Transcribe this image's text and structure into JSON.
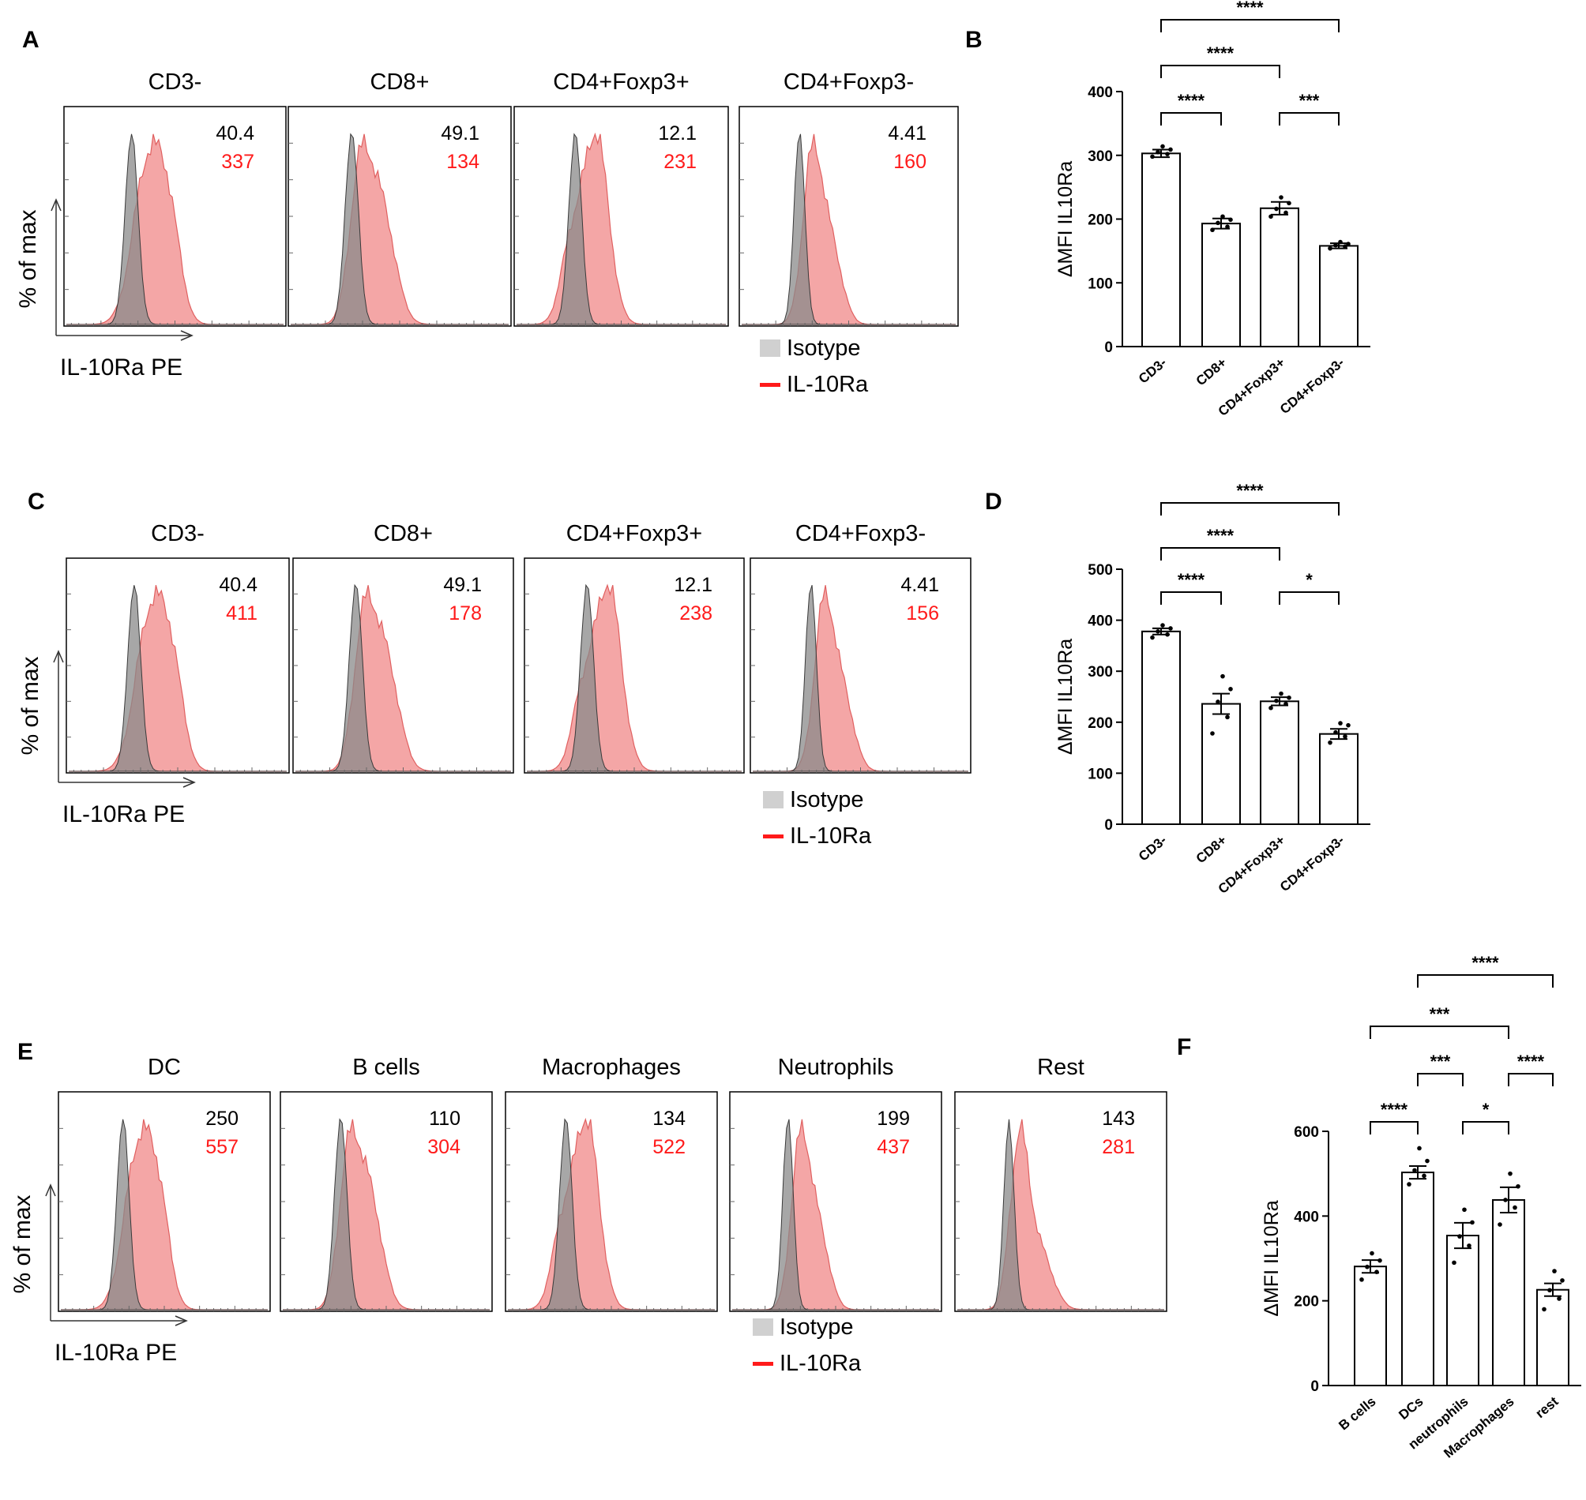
{
  "colors": {
    "isotype_fill": "#8a8a8a",
    "isotype_stroke": "#3a3a3a",
    "il10ra_fill": "#f4a6a6",
    "il10ra_stroke": "#e06060",
    "red_text": "#ff1a1a",
    "black": "#000000",
    "legend_swatch": "#d0d0d0"
  },
  "chart_data": [
    {
      "panel": "A",
      "type": "histogram",
      "ylabel": "% of max",
      "xlabel": "IL-10Ra PE",
      "legend": [
        "Isotype",
        "IL-10Ra"
      ],
      "populations": [
        {
          "title": "CD3-",
          "isotype_value": "40.4",
          "il10ra_value": "337"
        },
        {
          "title": "CD8+",
          "isotype_value": "49.1",
          "il10ra_value": "134"
        },
        {
          "title": "CD4+Foxp3+",
          "isotype_value": "12.1",
          "il10ra_value": "231"
        },
        {
          "title": "CD4+Foxp3-",
          "isotype_value": "4.41",
          "il10ra_value": "160"
        }
      ]
    },
    {
      "panel": "B",
      "type": "bar",
      "ylabel": "ΔMFI IL10Ra",
      "ylim": [
        0,
        400
      ],
      "yticks": [
        0,
        100,
        200,
        300,
        400
      ],
      "categories": [
        "CD3-",
        "CD8+",
        "CD4+Foxp3+",
        "CD4+Foxp3-"
      ],
      "values": [
        303,
        193,
        217,
        158
      ],
      "sem": [
        6,
        8,
        10,
        4
      ],
      "points": [
        [
          298,
          302,
          305,
          309,
          314
        ],
        [
          183,
          188,
          194,
          199,
          204
        ],
        [
          204,
          210,
          216,
          225,
          234
        ],
        [
          154,
          157,
          159,
          161,
          164
        ]
      ],
      "comparisons": [
        {
          "from": 0,
          "to": 1,
          "label": "****"
        },
        {
          "from": 2,
          "to": 3,
          "label": "***"
        },
        {
          "from": 0,
          "to": 2,
          "label": "****"
        },
        {
          "from": 0,
          "to": 3,
          "label": "****"
        }
      ]
    },
    {
      "panel": "C",
      "type": "histogram",
      "ylabel": "% of max",
      "xlabel": "IL-10Ra PE",
      "legend": [
        "Isotype",
        "IL-10Ra"
      ],
      "populations": [
        {
          "title": "CD3-",
          "isotype_value": "40.4",
          "il10ra_value": "411"
        },
        {
          "title": "CD8+",
          "isotype_value": "49.1",
          "il10ra_value": "178"
        },
        {
          "title": "CD4+Foxp3+",
          "isotype_value": "12.1",
          "il10ra_value": "238"
        },
        {
          "title": "CD4+Foxp3-",
          "isotype_value": "4.41",
          "il10ra_value": "156"
        }
      ]
    },
    {
      "panel": "D",
      "type": "bar",
      "ylabel": "ΔMFI IL10Ra",
      "ylim": [
        0,
        500
      ],
      "yticks": [
        0,
        100,
        200,
        300,
        400,
        500
      ],
      "categories": [
        "CD3-",
        "CD8+",
        "CD4+Foxp3+",
        "CD4+Foxp3-"
      ],
      "values": [
        378,
        236,
        241,
        177
      ],
      "sem": [
        6,
        20,
        8,
        10
      ],
      "points": [
        [
          366,
          372,
          378,
          384,
          390
        ],
        [
          178,
          210,
          240,
          265,
          290
        ],
        [
          228,
          236,
          242,
          248,
          256
        ],
        [
          160,
          172,
          180,
          194,
          198
        ]
      ],
      "comparisons": [
        {
          "from": 0,
          "to": 1,
          "label": "****"
        },
        {
          "from": 2,
          "to": 3,
          "label": "*"
        },
        {
          "from": 0,
          "to": 2,
          "label": "****"
        },
        {
          "from": 0,
          "to": 3,
          "label": "****"
        }
      ]
    },
    {
      "panel": "E",
      "type": "histogram",
      "ylabel": "% of max",
      "xlabel": "IL-10Ra PE",
      "legend": [
        "Isotype",
        "IL-10Ra"
      ],
      "populations": [
        {
          "title": "DC",
          "isotype_value": "250",
          "il10ra_value": "557"
        },
        {
          "title": "B cells",
          "isotype_value": "110",
          "il10ra_value": "304"
        },
        {
          "title": "Macrophages",
          "isotype_value": "134",
          "il10ra_value": "522"
        },
        {
          "title": "Neutrophils",
          "isotype_value": "199",
          "il10ra_value": "437"
        },
        {
          "title": "Rest",
          "isotype_value": "143",
          "il10ra_value": "281"
        }
      ]
    },
    {
      "panel": "F",
      "type": "bar",
      "ylabel": "ΔMFI IL10Ra",
      "ylim": [
        0,
        600
      ],
      "yticks": [
        0,
        200,
        400,
        600
      ],
      "categories": [
        "B cells",
        "DCs",
        "neutrophils",
        "Macrophages",
        "rest"
      ],
      "values": [
        281,
        503,
        354,
        438,
        226
      ],
      "sem": [
        15,
        15,
        30,
        30,
        15
      ],
      "points": [
        [
          250,
          268,
          280,
          295,
          312
        ],
        [
          475,
          495,
          508,
          530,
          560
        ],
        [
          290,
          330,
          352,
          385,
          415
        ],
        [
          380,
          420,
          438,
          470,
          500
        ],
        [
          180,
          205,
          225,
          248,
          270
        ]
      ],
      "comparisons": [
        {
          "from": 0,
          "to": 1,
          "label": "****"
        },
        {
          "from": 2,
          "to": 3,
          "label": "*"
        },
        {
          "from": 1,
          "to": 2,
          "label": "***"
        },
        {
          "from": 3,
          "to": 4,
          "label": "****"
        },
        {
          "from": 0,
          "to": 3,
          "label": "***"
        },
        {
          "from": 1,
          "to": 4,
          "label": "****"
        }
      ]
    }
  ]
}
